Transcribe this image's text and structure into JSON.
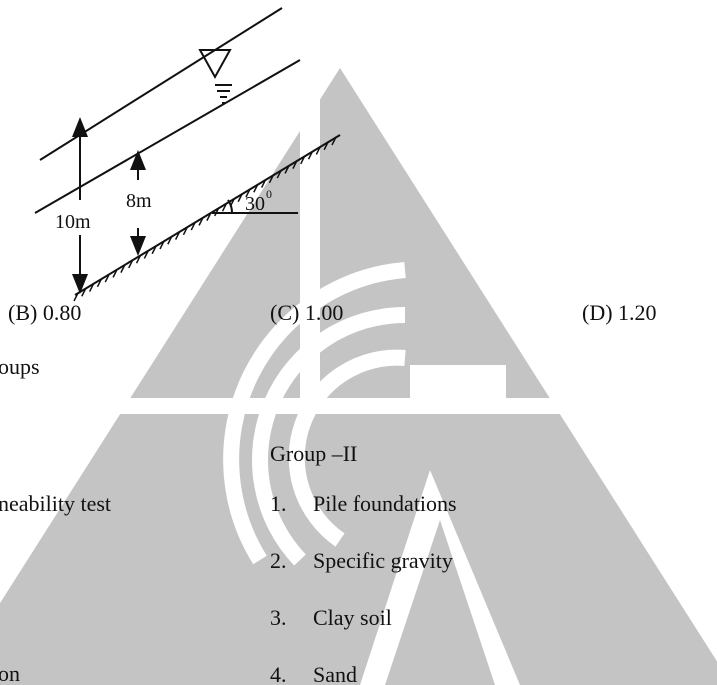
{
  "diagram": {
    "labels": {
      "total": "10m",
      "depth": "8m",
      "angle": "30",
      "degree": "0"
    }
  },
  "options": [
    "(B)  0.80",
    "(C) 1.00",
    "(D) 1.20"
  ],
  "question": {
    "fragment": "oups",
    "group_2_heading": "Group –II",
    "group_1_fragments": [
      "neability test",
      "on"
    ],
    "group_2": [
      {
        "num": "1.",
        "text": "Pile foundations"
      },
      {
        "num": "2.",
        "text": "Specific gravity"
      },
      {
        "num": "3.",
        "text": "Clay soil"
      },
      {
        "num": "4.",
        "text": "Sand"
      }
    ]
  }
}
